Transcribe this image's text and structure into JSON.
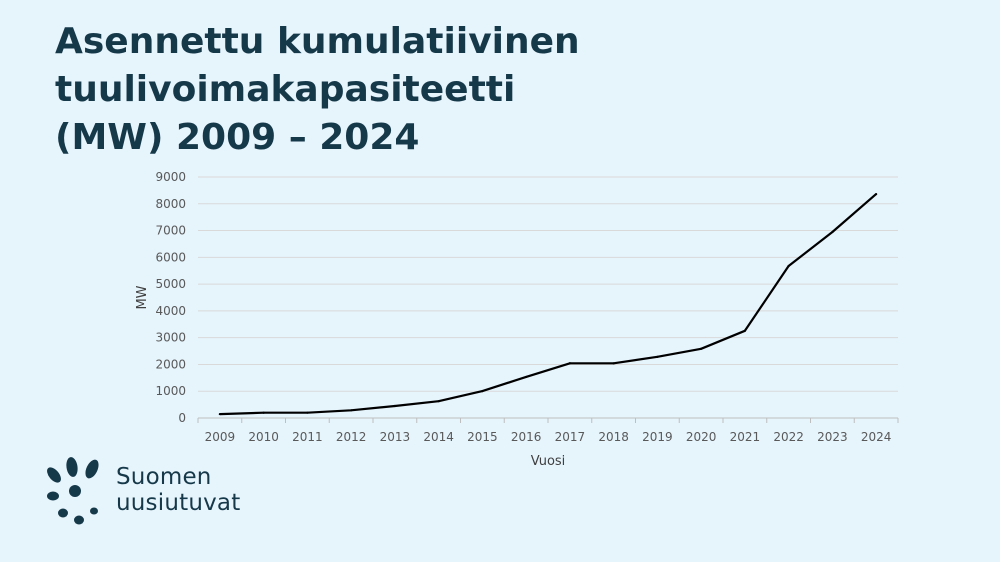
{
  "title": {
    "line1": "Asennettu kumulatiivinen tuulivoimakapasiteetti",
    "line2": "(MW) 2009 – 2024"
  },
  "chart_data": {
    "type": "line",
    "categories": [
      "2009",
      "2010",
      "2011",
      "2012",
      "2013",
      "2014",
      "2015",
      "2016",
      "2017",
      "2018",
      "2019",
      "2020",
      "2021",
      "2022",
      "2023",
      "2024"
    ],
    "series": [
      {
        "values": [
          147,
          197,
          199,
          288,
          448,
          627,
          1005,
          1533,
          2044,
          2041,
          2284,
          2586,
          3257,
          5677,
          6946,
          8362
        ]
      }
    ],
    "yticks": [
      0,
      1000,
      2000,
      3000,
      4000,
      5000,
      6000,
      7000,
      8000,
      9000
    ],
    "ylim": [
      0,
      9000
    ],
    "xlabel": "Vuosi",
    "ylabel": "MW",
    "grid": true,
    "line_color": "#000000"
  },
  "logo": {
    "line1": "Suomen",
    "line2": "uusiutuvat",
    "color": "#16394a"
  }
}
